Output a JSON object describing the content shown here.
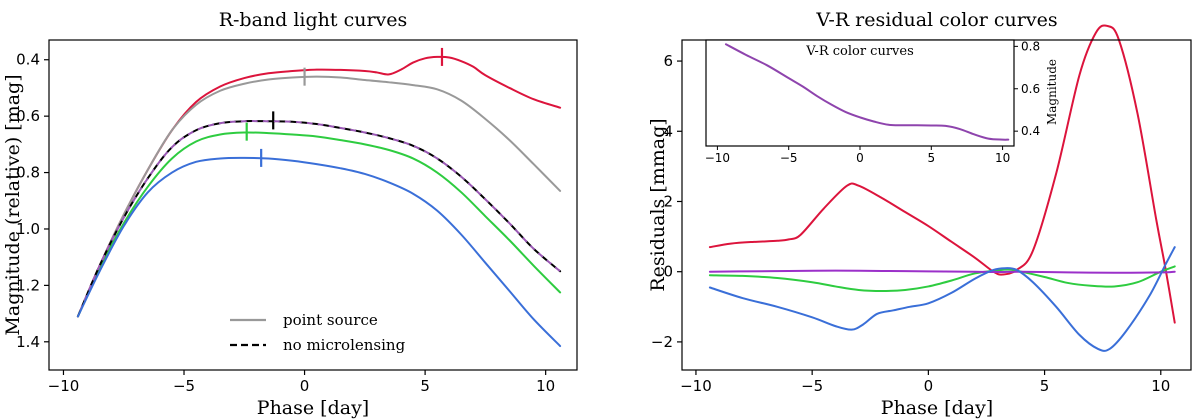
{
  "chart_data": [
    {
      "type": "line",
      "title": "R-band light curves",
      "xlabel": "Phase [day]",
      "ylabel": "Magnitude (relative) [mag]",
      "xlim": [
        -10.6,
        11.3
      ],
      "ylim": [
        1.5,
        0.33
      ],
      "y_inverted": true,
      "xticks": [
        -10,
        -5,
        0,
        5,
        10
      ],
      "yticks": [
        0.4,
        0.6,
        0.8,
        1.0,
        1.2,
        1.4
      ],
      "xtick_labels": [
        "−10",
        "−5",
        "0",
        "5",
        "10"
      ],
      "ytick_labels": [
        "0.4",
        "0.6",
        "0.8",
        "1.0",
        "1.2",
        "1.4"
      ],
      "legend_position": "lower-center",
      "legend": [
        "point source",
        "no microlensing"
      ],
      "series": [
        {
          "name": "",
          "color": "#dc143c",
          "style": "solid",
          "x": [
            -9.4,
            -8.5,
            -7.5,
            -6.5,
            -5.5,
            -4.5,
            -3.5,
            -2.5,
            -1.5,
            -0.5,
            0.5,
            1.5,
            2.5,
            3.0,
            3.5,
            4.0,
            4.5,
            5.0,
            5.5,
            6.0,
            6.5,
            7.0,
            7.5,
            8.5,
            9.5,
            10.6
          ],
          "y": [
            1.31,
            1.13,
            0.95,
            0.79,
            0.65,
            0.55,
            0.495,
            0.465,
            0.448,
            0.44,
            0.435,
            0.436,
            0.44,
            0.445,
            0.452,
            0.435,
            0.41,
            0.395,
            0.39,
            0.392,
            0.405,
            0.425,
            0.455,
            0.5,
            0.54,
            0.57
          ],
          "marker": {
            "x": 5.7,
            "y": 0.39
          }
        },
        {
          "name": "point source",
          "color": "#999999",
          "style": "solid",
          "x": [
            -9.4,
            -8.5,
            -7.5,
            -6.5,
            -5.5,
            -4.5,
            -3.5,
            -2.5,
            -1.5,
            -0.5,
            0.5,
            1.5,
            2.5,
            3.5,
            4.5,
            5.5,
            6.5,
            7.5,
            8.5,
            9.5,
            10.6
          ],
          "y": [
            1.31,
            1.13,
            0.95,
            0.79,
            0.65,
            0.56,
            0.51,
            0.485,
            0.47,
            0.463,
            0.46,
            0.463,
            0.472,
            0.48,
            0.49,
            0.505,
            0.545,
            0.61,
            0.685,
            0.77,
            0.865
          ],
          "marker": {
            "x": 0.0,
            "y": 0.46
          }
        },
        {
          "name": "",
          "color": "#2ecc40",
          "style": "solid",
          "x": [
            -9.4,
            -8.5,
            -7.5,
            -6.5,
            -5.5,
            -4.5,
            -3.5,
            -2.5,
            -1.5,
            -0.5,
            0.5,
            1.5,
            2.5,
            3.5,
            4.5,
            5.5,
            6.5,
            7.5,
            8.5,
            9.5,
            10.6
          ],
          "y": [
            1.31,
            1.14,
            0.98,
            0.85,
            0.75,
            0.69,
            0.665,
            0.658,
            0.66,
            0.665,
            0.672,
            0.685,
            0.7,
            0.72,
            0.75,
            0.8,
            0.87,
            0.955,
            1.04,
            1.13,
            1.225
          ],
          "marker": {
            "x": -2.4,
            "y": 0.655
          }
        },
        {
          "name": "no microlensing",
          "color": "#000000",
          "style": "dashed",
          "x": [
            -9.4,
            -8.5,
            -7.5,
            -6.5,
            -5.5,
            -4.5,
            -3.5,
            -2.5,
            -1.5,
            -0.5,
            0.5,
            1.5,
            2.5,
            3.5,
            4.5,
            5.5,
            6.5,
            7.5,
            8.5,
            9.5,
            10.6
          ],
          "y": [
            1.31,
            1.13,
            0.96,
            0.82,
            0.71,
            0.65,
            0.625,
            0.618,
            0.618,
            0.62,
            0.628,
            0.642,
            0.658,
            0.678,
            0.705,
            0.75,
            0.815,
            0.895,
            0.98,
            1.07,
            1.15
          ],
          "marker": {
            "x": -1.3,
            "y": 0.615
          }
        },
        {
          "name": "",
          "color": "#9b59b6",
          "style": "dashed-overlay",
          "x": [
            -9.4,
            -8.5,
            -7.5,
            -6.5,
            -5.5,
            -4.5,
            -3.5,
            -2.5,
            -1.5,
            -0.5,
            0.5,
            1.5,
            2.5,
            3.5,
            4.5,
            5.5,
            6.5,
            7.5,
            8.5,
            9.5,
            10.6
          ],
          "y": [
            1.31,
            1.13,
            0.96,
            0.82,
            0.71,
            0.65,
            0.625,
            0.618,
            0.618,
            0.62,
            0.628,
            0.642,
            0.658,
            0.678,
            0.705,
            0.75,
            0.815,
            0.895,
            0.98,
            1.07,
            1.15
          ]
        },
        {
          "name": "",
          "color": "#3a6fd8",
          "style": "solid",
          "x": [
            -9.4,
            -8.5,
            -7.5,
            -6.5,
            -5.5,
            -4.5,
            -3.5,
            -2.5,
            -1.5,
            -0.5,
            0.5,
            1.5,
            2.5,
            3.5,
            4.5,
            5.5,
            6.5,
            7.5,
            8.5,
            9.5,
            10.6
          ],
          "y": [
            1.31,
            1.15,
            0.99,
            0.87,
            0.8,
            0.762,
            0.75,
            0.748,
            0.75,
            0.758,
            0.77,
            0.785,
            0.805,
            0.835,
            0.875,
            0.935,
            1.02,
            1.12,
            1.22,
            1.32,
            1.415
          ],
          "marker": {
            "x": -1.8,
            "y": 0.748
          }
        }
      ]
    },
    {
      "type": "line",
      "title": "V-R residual color curves",
      "xlabel": "Phase [day]",
      "ylabel": "Residuals [mmag]",
      "xlim": [
        -10.6,
        11.3
      ],
      "ylim": [
        -2.8,
        6.6
      ],
      "xticks": [
        -10,
        -5,
        0,
        5,
        10
      ],
      "yticks": [
        -2,
        0,
        2,
        4,
        6
      ],
      "xtick_labels": [
        "−10",
        "−5",
        "0",
        "5",
        "10"
      ],
      "ytick_labels": [
        "−2",
        "0",
        "2",
        "4",
        "6"
      ],
      "series": [
        {
          "name": "",
          "color": "#dc143c",
          "x": [
            -9.4,
            -8.5,
            -7.5,
            -6.5,
            -6.0,
            -5.5,
            -4.5,
            -3.5,
            -3.0,
            -2.0,
            -1.0,
            0.0,
            1.0,
            2.0,
            2.8,
            3.2,
            3.8,
            4.5,
            5.5,
            6.5,
            7.2,
            7.7,
            8.2,
            9.0,
            9.8,
            10.2,
            10.6
          ],
          "y": [
            0.7,
            0.8,
            0.85,
            0.88,
            0.92,
            1.05,
            1.8,
            2.45,
            2.45,
            2.1,
            1.7,
            1.3,
            0.85,
            0.4,
            0.0,
            -0.08,
            0.05,
            0.6,
            2.8,
            5.6,
            6.8,
            7.0,
            6.6,
            4.5,
            1.5,
            0.1,
            -1.45
          ]
        },
        {
          "name": "",
          "color": "#2ecc40",
          "x": [
            -9.4,
            -8.0,
            -6.5,
            -5.0,
            -4.0,
            -3.0,
            -2.0,
            -1.0,
            0.0,
            1.0,
            2.0,
            3.0,
            3.5,
            4.0,
            5.0,
            6.0,
            7.0,
            8.0,
            9.0,
            10.0,
            10.6
          ],
          "y": [
            -0.1,
            -0.12,
            -0.18,
            -0.3,
            -0.42,
            -0.52,
            -0.55,
            -0.52,
            -0.42,
            -0.25,
            -0.05,
            0.04,
            0.06,
            0.0,
            -0.15,
            -0.32,
            -0.4,
            -0.42,
            -0.3,
            0.0,
            0.15
          ]
        },
        {
          "name": "",
          "color": "#9b30c9",
          "x": [
            -9.4,
            -8.0,
            -6.0,
            -4.0,
            -2.0,
            0.0,
            2.0,
            3.0,
            4.0,
            6.0,
            8.0,
            10.0,
            10.6
          ],
          "y": [
            0.0,
            0.01,
            0.02,
            0.03,
            0.02,
            0.01,
            0.0,
            -0.01,
            0.0,
            -0.02,
            -0.03,
            -0.02,
            0.0
          ]
        },
        {
          "name": "",
          "color": "#3a6fd8",
          "x": [
            -9.4,
            -8.0,
            -6.5,
            -5.0,
            -4.0,
            -3.3,
            -2.8,
            -2.2,
            -1.5,
            -0.8,
            0.0,
            1.0,
            2.0,
            2.8,
            3.3,
            3.8,
            4.5,
            5.5,
            6.5,
            7.3,
            7.8,
            8.5,
            9.5,
            10.2,
            10.6
          ],
          "y": [
            -0.45,
            -0.75,
            -1.0,
            -1.3,
            -1.55,
            -1.65,
            -1.5,
            -1.2,
            -1.1,
            -1.0,
            -0.9,
            -0.6,
            -0.2,
            0.05,
            0.1,
            0.05,
            -0.3,
            -1.0,
            -1.8,
            -2.2,
            -2.2,
            -1.7,
            -0.7,
            0.2,
            0.7
          ]
        }
      ],
      "inset": {
        "title": "V-R color curves",
        "ylabel": "Magnitude",
        "xlim": [
          -10.8,
          10.8
        ],
        "ylim": [
          0.33,
          0.83
        ],
        "xticks": [
          -10,
          -5,
          0,
          5,
          10
        ],
        "yticks": [
          0.4,
          0.6,
          0.8
        ],
        "xtick_labels": [
          "−10",
          "−5",
          "0",
          "5",
          "10"
        ],
        "ytick_labels": [
          "0.4",
          "0.6",
          "0.8"
        ],
        "series": [
          {
            "name": "",
            "color": "#8e44ad",
            "x": [
              -9.4,
              -8.0,
              -6.5,
              -5.0,
              -4.0,
              -3.0,
              -2.0,
              -1.0,
              0.0,
              1.0,
              2.0,
              3.0,
              4.0,
              5.0,
              6.0,
              7.0,
              8.0,
              9.0,
              10.0,
              10.4
            ],
            "y": [
              0.81,
              0.76,
              0.71,
              0.65,
              0.61,
              0.565,
              0.525,
              0.49,
              0.465,
              0.445,
              0.43,
              0.428,
              0.428,
              0.427,
              0.425,
              0.41,
              0.385,
              0.365,
              0.36,
              0.36
            ]
          }
        ]
      }
    }
  ]
}
